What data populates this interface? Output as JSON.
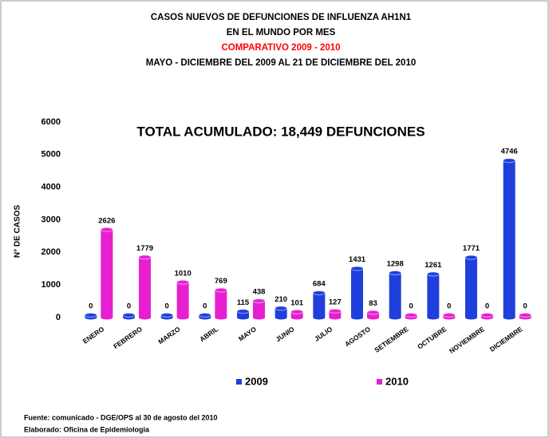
{
  "chart_data": {
    "type": "bar",
    "title_lines": [
      {
        "text": "CASOS NUEVOS DE DEFUNCIONES DE INFLUENZA  AH1N1",
        "color": "#000000"
      },
      {
        "text": "EN EL MUNDO POR MES",
        "color": "#000000"
      },
      {
        "text": "COMPARATIVO 2009 - 2010",
        "color": "#ff0000"
      },
      {
        "text": "MAYO - DICIEMBRE DEL 2009 AL 21 DE DICIEMBRE DEL 2010",
        "color": "#000000"
      }
    ],
    "annotation": "TOTAL  ACUMULADO: 18,449 DEFUNCIONES",
    "y_label": "N° DE CASOS",
    "categories": [
      "ENERO",
      "FEBRERO",
      "MARZO",
      "ABRIL",
      "MAYO",
      "JUNIO",
      "JULIO",
      "AGOSTO",
      "SETIEMBRE",
      "OCTUBRE",
      "NOVIEMBRE",
      "DICIEMBRE"
    ],
    "series": [
      {
        "name": "2009",
        "color": "#1f3fdc",
        "values": [
          0,
          0,
          0,
          0,
          115,
          210,
          684,
          1431,
          1298,
          1261,
          1771,
          4746
        ]
      },
      {
        "name": "2010",
        "color": "#e620d0",
        "values": [
          2626,
          1779,
          1010,
          769,
          438,
          101,
          127,
          83,
          0,
          0,
          0,
          0
        ]
      }
    ],
    "ylim": [
      0,
      6000
    ],
    "yticks": [
      0,
      1000,
      2000,
      3000,
      4000,
      5000,
      6000
    ],
    "grid": false,
    "legend": "bottom",
    "notes": [
      "Fuente: comunicado - DGE/OPS  al 30 de agosto del 2010",
      "Elaborado: Oficina de Epidemiologia"
    ]
  }
}
